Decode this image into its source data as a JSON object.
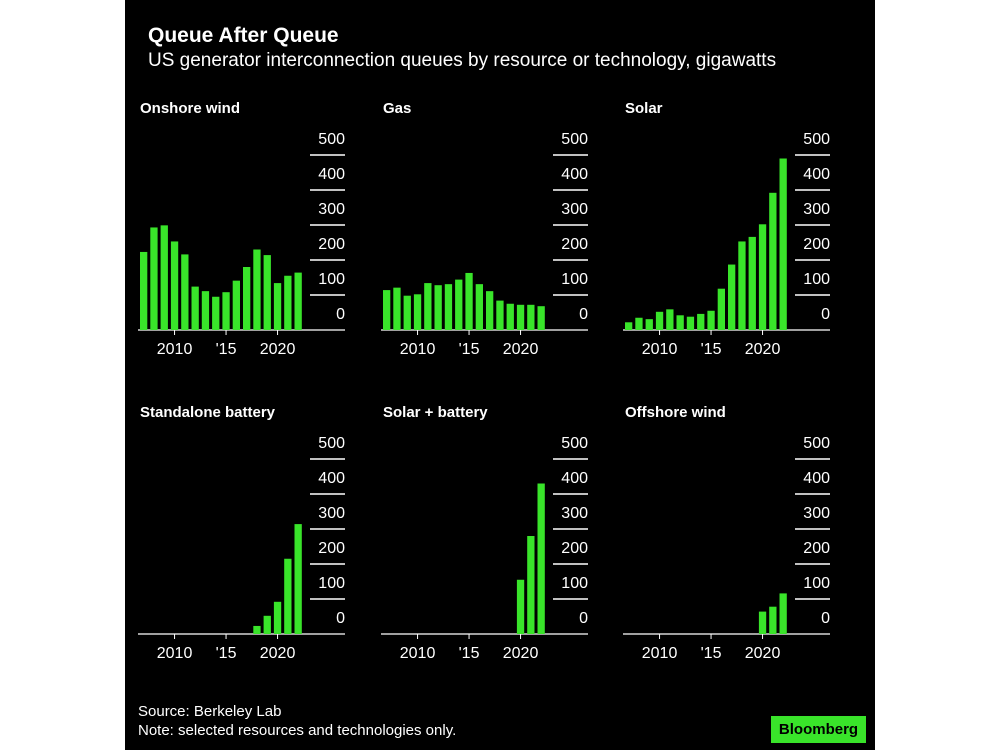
{
  "title": "Queue After Queue",
  "subtitle": "US generator interconnection queues by resource or technology, gigawatts",
  "source": "Source: Berkeley Lab",
  "note": "Note: selected resources and technologies only.",
  "logo": "Bloomberg",
  "colors": {
    "bar": "#39e42a",
    "background": "#000000",
    "text": "#ffffff"
  },
  "chart_data": [
    {
      "type": "bar",
      "title": "Onshore wind",
      "x": [
        2007,
        2008,
        2009,
        2010,
        2011,
        2012,
        2013,
        2014,
        2015,
        2016,
        2017,
        2018,
        2019,
        2020,
        2021,
        2022
      ],
      "values": [
        223,
        293,
        299,
        253,
        216,
        124,
        111,
        95,
        108,
        141,
        180,
        230,
        214,
        134,
        155,
        164
      ],
      "ylim": [
        0,
        500
      ],
      "yticks": [
        "0",
        "100",
        "200",
        "300",
        "400",
        "500"
      ],
      "xticks": [
        "2010",
        "'15",
        "2020"
      ]
    },
    {
      "type": "bar",
      "title": "Gas",
      "x": [
        2007,
        2008,
        2009,
        2010,
        2011,
        2012,
        2013,
        2014,
        2015,
        2016,
        2017,
        2018,
        2019,
        2020,
        2021,
        2022
      ],
      "values": [
        114,
        121,
        98,
        102,
        134,
        128,
        131,
        144,
        163,
        131,
        111,
        84,
        75,
        72,
        72,
        68
      ],
      "ylim": [
        0,
        500
      ],
      "yticks": [
        "0",
        "100",
        "200",
        "300",
        "400",
        "500"
      ],
      "xticks": [
        "2010",
        "'15",
        "2020"
      ]
    },
    {
      "type": "bar",
      "title": "Solar",
      "x": [
        2007,
        2008,
        2009,
        2010,
        2011,
        2012,
        2013,
        2014,
        2015,
        2016,
        2017,
        2018,
        2019,
        2020,
        2021,
        2022
      ],
      "values": [
        22,
        35,
        31,
        52,
        59,
        42,
        38,
        46,
        55,
        118,
        187,
        253,
        266,
        302,
        392,
        490
      ],
      "ylim": [
        0,
        500
      ],
      "yticks": [
        "0",
        "100",
        "200",
        "300",
        "400",
        "500"
      ],
      "xticks": [
        "2010",
        "'15",
        "2020"
      ]
    },
    {
      "type": "bar",
      "title": "Standalone battery",
      "x": [
        2018,
        2019,
        2020,
        2021,
        2022
      ],
      "values": [
        23,
        52,
        92,
        215,
        314
      ],
      "ylim": [
        0,
        500
      ],
      "yticks": [
        "0",
        "100",
        "200",
        "300",
        "400",
        "500"
      ],
      "xticks": [
        "2010",
        "'15",
        "2020"
      ]
    },
    {
      "type": "bar",
      "title": "Solar + battery",
      "x": [
        2020,
        2021,
        2022
      ],
      "values": [
        155,
        280,
        430
      ],
      "ylim": [
        0,
        500
      ],
      "yticks": [
        "0",
        "100",
        "200",
        "300",
        "400",
        "500"
      ],
      "xticks": [
        "2010",
        "'15",
        "2020"
      ]
    },
    {
      "type": "bar",
      "title": "Offshore wind",
      "x": [
        2020,
        2021,
        2022
      ],
      "values": [
        64,
        78,
        116
      ],
      "ylim": [
        0,
        500
      ],
      "yticks": [
        "0",
        "100",
        "200",
        "300",
        "400",
        "500"
      ],
      "xticks": [
        "2010",
        "'15",
        "2020"
      ]
    }
  ]
}
